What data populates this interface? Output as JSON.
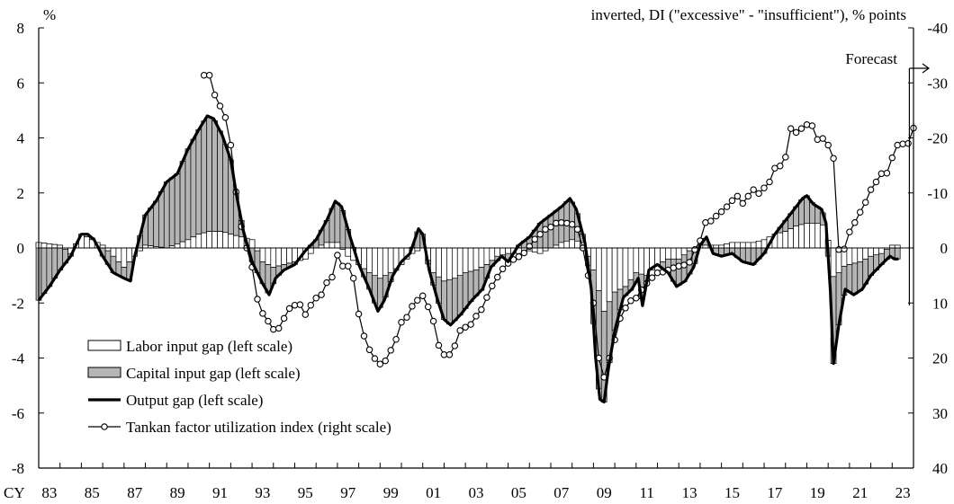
{
  "chart_data": {
    "type": "bar+line",
    "left_axis_label": "%",
    "right_axis_label": "inverted, DI (\"excessive\" - \"insufficient\"), % points",
    "left_ylim": [
      -8,
      8
    ],
    "left_ticks": [
      8,
      6,
      4,
      2,
      0,
      -2,
      -4,
      -6,
      -8
    ],
    "right_ylim_inverted": [
      40,
      -40
    ],
    "right_ticks": [
      -40,
      -30,
      -20,
      -10,
      0,
      10,
      20,
      30,
      40
    ],
    "x_axis_prefix": "CY",
    "x_tick_labels": [
      "83",
      "85",
      "87",
      "89",
      "91",
      "93",
      "95",
      "97",
      "99",
      "01",
      "03",
      "05",
      "07",
      "09",
      "11",
      "13",
      "15",
      "17",
      "19",
      "21",
      "23"
    ],
    "x_tick_years": [
      1983,
      1985,
      1987,
      1989,
      1991,
      1993,
      1995,
      1997,
      1999,
      2001,
      2003,
      2005,
      2007,
      2009,
      2011,
      2013,
      2015,
      2017,
      2019,
      2021,
      2023
    ],
    "forecast_label": "Forecast",
    "forecast_start": 2023.3,
    "output_gap": {
      "name": "Output gap (left scale)",
      "points": [
        [
          1983.0,
          -1.9
        ],
        [
          1983.5,
          -1.4
        ],
        [
          1984.0,
          -0.8
        ],
        [
          1984.5,
          -0.3
        ],
        [
          1984.8,
          0.2
        ],
        [
          1985.0,
          0.5
        ],
        [
          1985.3,
          0.5
        ],
        [
          1985.6,
          0.3
        ],
        [
          1986.0,
          -0.3
        ],
        [
          1986.5,
          -0.9
        ],
        [
          1987.0,
          -1.1
        ],
        [
          1987.3,
          -1.2
        ],
        [
          1987.5,
          -0.3
        ],
        [
          1987.8,
          0.6
        ],
        [
          1988.0,
          1.2
        ],
        [
          1988.5,
          1.7
        ],
        [
          1989.0,
          2.4
        ],
        [
          1989.5,
          2.7
        ],
        [
          1990.0,
          3.6
        ],
        [
          1990.5,
          4.3
        ],
        [
          1990.9,
          4.8
        ],
        [
          1991.2,
          4.7
        ],
        [
          1991.6,
          4.1
        ],
        [
          1992.0,
          3.2
        ],
        [
          1992.3,
          1.8
        ],
        [
          1992.6,
          0.6
        ],
        [
          1993.0,
          -0.5
        ],
        [
          1993.5,
          -1.3
        ],
        [
          1993.8,
          -1.7
        ],
        [
          1994.1,
          -1.1
        ],
        [
          1994.5,
          -0.8
        ],
        [
          1995.0,
          -0.6
        ],
        [
          1995.5,
          -0.1
        ],
        [
          1996.0,
          0.3
        ],
        [
          1996.5,
          1.0
        ],
        [
          1996.9,
          1.7
        ],
        [
          1997.2,
          1.5
        ],
        [
          1997.6,
          0.4
        ],
        [
          1998.0,
          -0.6
        ],
        [
          1998.5,
          -1.5
        ],
        [
          1998.9,
          -2.3
        ],
        [
          1999.2,
          -1.9
        ],
        [
          1999.6,
          -1.0
        ],
        [
          2000.0,
          -0.5
        ],
        [
          2000.4,
          -0.2
        ],
        [
          2000.8,
          0.7
        ],
        [
          2001.0,
          0.5
        ],
        [
          2001.3,
          -0.8
        ],
        [
          2001.7,
          -1.9
        ],
        [
          2002.0,
          -2.6
        ],
        [
          2002.3,
          -2.8
        ],
        [
          2002.8,
          -2.4
        ],
        [
          2003.3,
          -1.9
        ],
        [
          2003.8,
          -1.5
        ],
        [
          2004.2,
          -0.7
        ],
        [
          2004.7,
          -0.3
        ],
        [
          2005.0,
          -0.5
        ],
        [
          2005.5,
          0.1
        ],
        [
          2006.0,
          0.4
        ],
        [
          2006.5,
          0.9
        ],
        [
          2007.0,
          1.2
        ],
        [
          2007.5,
          1.5
        ],
        [
          2007.9,
          1.8
        ],
        [
          2008.2,
          1.4
        ],
        [
          2008.6,
          0.2
        ],
        [
          2008.9,
          -1.5
        ],
        [
          2009.1,
          -4.0
        ],
        [
          2009.3,
          -5.5
        ],
        [
          2009.5,
          -5.6
        ],
        [
          2009.7,
          -4.4
        ],
        [
          2010.0,
          -3.0
        ],
        [
          2010.4,
          -1.8
        ],
        [
          2010.8,
          -1.5
        ],
        [
          2011.1,
          -1.1
        ],
        [
          2011.3,
          -2.1
        ],
        [
          2011.6,
          -0.8
        ],
        [
          2012.0,
          -0.6
        ],
        [
          2012.5,
          -0.9
        ],
        [
          2012.9,
          -1.4
        ],
        [
          2013.3,
          -1.2
        ],
        [
          2013.7,
          -0.7
        ],
        [
          2014.0,
          0.1
        ],
        [
          2014.3,
          0.4
        ],
        [
          2014.6,
          -0.2
        ],
        [
          2015.0,
          -0.3
        ],
        [
          2015.5,
          -0.2
        ],
        [
          2016.0,
          -0.5
        ],
        [
          2016.5,
          -0.6
        ],
        [
          2017.0,
          -0.2
        ],
        [
          2017.5,
          0.5
        ],
        [
          2017.9,
          0.9
        ],
        [
          2018.3,
          1.3
        ],
        [
          2018.8,
          1.8
        ],
        [
          2019.0,
          1.9
        ],
        [
          2019.3,
          1.6
        ],
        [
          2019.7,
          1.4
        ],
        [
          2019.9,
          0.9
        ],
        [
          2020.1,
          -1.5
        ],
        [
          2020.25,
          -4.2
        ],
        [
          2020.5,
          -2.8
        ],
        [
          2020.8,
          -1.5
        ],
        [
          2021.2,
          -1.7
        ],
        [
          2021.6,
          -1.5
        ],
        [
          2022.0,
          -1.0
        ],
        [
          2022.5,
          -0.6
        ],
        [
          2022.9,
          -0.3
        ],
        [
          2023.1,
          -0.4
        ],
        [
          2023.3,
          -0.4
        ]
      ]
    },
    "labor_input_gap": {
      "name": "Labor input gap (left scale)",
      "points": [
        [
          1983.0,
          0.2
        ],
        [
          1984.0,
          0.1
        ],
        [
          1984.5,
          -0.2
        ],
        [
          1985.0,
          0.5
        ],
        [
          1985.5,
          0.3
        ],
        [
          1986.0,
          0.1
        ],
        [
          1986.5,
          -0.3
        ],
        [
          1987.0,
          -0.7
        ],
        [
          1987.5,
          -0.3
        ],
        [
          1988.0,
          0.1
        ],
        [
          1989.0,
          0.0
        ],
        [
          1990.0,
          0.3
        ],
        [
          1990.5,
          0.5
        ],
        [
          1991.0,
          0.6
        ],
        [
          1991.6,
          0.6
        ],
        [
          1992.0,
          0.5
        ],
        [
          1992.5,
          0.4
        ],
        [
          1993.0,
          0.3
        ],
        [
          1993.5,
          -0.5
        ],
        [
          1994.0,
          -0.7
        ],
        [
          1994.5,
          -0.6
        ],
        [
          1995.0,
          -0.5
        ],
        [
          1995.5,
          -0.4
        ],
        [
          1996.0,
          0.0
        ],
        [
          1996.5,
          0.2
        ],
        [
          1997.0,
          0.2
        ],
        [
          1997.5,
          -0.3
        ],
        [
          1998.0,
          -0.6
        ],
        [
          1998.5,
          -0.9
        ],
        [
          1999.0,
          -1.1
        ],
        [
          1999.5,
          -0.9
        ],
        [
          2000.0,
          -0.6
        ],
        [
          2000.5,
          -0.2
        ],
        [
          2001.0,
          0.0
        ],
        [
          2001.5,
          -0.9
        ],
        [
          2002.0,
          -1.2
        ],
        [
          2002.5,
          -1.1
        ],
        [
          2003.0,
          -0.9
        ],
        [
          2003.5,
          -0.8
        ],
        [
          2004.0,
          -0.6
        ],
        [
          2004.5,
          -0.3
        ],
        [
          2005.0,
          -0.2
        ],
        [
          2005.5,
          -0.2
        ],
        [
          2006.0,
          -0.1
        ],
        [
          2006.5,
          -0.2
        ],
        [
          2007.0,
          0.0
        ],
        [
          2007.5,
          0.2
        ],
        [
          2008.0,
          0.3
        ],
        [
          2008.5,
          0.2
        ],
        [
          2009.0,
          -0.8
        ],
        [
          2009.5,
          -2.3
        ],
        [
          2010.0,
          -1.6
        ],
        [
          2010.5,
          -1.4
        ],
        [
          2011.0,
          -0.9
        ],
        [
          2011.5,
          -1.0
        ],
        [
          2012.0,
          -0.6
        ],
        [
          2012.5,
          -0.4
        ],
        [
          2013.0,
          -0.4
        ],
        [
          2013.5,
          -0.1
        ],
        [
          2014.0,
          0.1
        ],
        [
          2014.5,
          0.1
        ],
        [
          2015.0,
          0.1
        ],
        [
          2015.5,
          0.2
        ],
        [
          2016.0,
          0.2
        ],
        [
          2016.5,
          0.2
        ],
        [
          2017.0,
          0.3
        ],
        [
          2017.5,
          0.5
        ],
        [
          2018.0,
          0.6
        ],
        [
          2018.5,
          0.8
        ],
        [
          2019.0,
          0.9
        ],
        [
          2019.5,
          0.9
        ],
        [
          2019.9,
          0.8
        ],
        [
          2020.3,
          -1.3
        ],
        [
          2020.6,
          -0.7
        ],
        [
          2021.0,
          -0.6
        ],
        [
          2021.5,
          -0.5
        ],
        [
          2022.0,
          -0.3
        ],
        [
          2022.5,
          -0.2
        ],
        [
          2023.0,
          0.1
        ],
        [
          2023.3,
          0.1
        ]
      ]
    },
    "capital_input_gap": {
      "name": "Capital input gap (left scale)",
      "description": "shaded area between the labor input gap and the output gap"
    },
    "tankan": {
      "name": "Tankan factor utilization index (right scale)",
      "points": [
        [
          1990.75,
          -31.4
        ],
        [
          1991.0,
          -31.4
        ],
        [
          1991.25,
          -27.8
        ],
        [
          1991.5,
          -25.8
        ],
        [
          1991.75,
          -23.7
        ],
        [
          1992.0,
          -18.7
        ],
        [
          1992.25,
          -10.2
        ],
        [
          1992.5,
          -3.9
        ],
        [
          1992.75,
          0.0
        ],
        [
          1993.0,
          3.5
        ],
        [
          1993.25,
          9.3
        ],
        [
          1993.5,
          11.9
        ],
        [
          1993.75,
          13.3
        ],
        [
          1994.0,
          14.8
        ],
        [
          1994.25,
          14.6
        ],
        [
          1994.5,
          12.8
        ],
        [
          1994.75,
          11.0
        ],
        [
          1995.0,
          10.4
        ],
        [
          1995.25,
          10.3
        ],
        [
          1995.5,
          12.1
        ],
        [
          1995.75,
          10.4
        ],
        [
          1996.0,
          9.1
        ],
        [
          1996.25,
          8.5
        ],
        [
          1996.5,
          6.3
        ],
        [
          1996.75,
          5.3
        ],
        [
          1997.0,
          1.3
        ],
        [
          1997.25,
          3.3
        ],
        [
          1997.5,
          3.3
        ],
        [
          1997.75,
          5.5
        ],
        [
          1998.0,
          12.0
        ],
        [
          1998.25,
          16.0
        ],
        [
          1998.5,
          18.5
        ],
        [
          1998.75,
          20.1
        ],
        [
          1999.0,
          21.1
        ],
        [
          1999.25,
          20.5
        ],
        [
          1999.5,
          18.6
        ],
        [
          1999.75,
          16.6
        ],
        [
          2000.0,
          13.5
        ],
        [
          2000.25,
          12.6
        ],
        [
          2000.5,
          10.6
        ],
        [
          2000.75,
          9.5
        ],
        [
          2001.0,
          8.7
        ],
        [
          2001.25,
          10.7
        ],
        [
          2001.5,
          13.3
        ],
        [
          2001.75,
          17.7
        ],
        [
          2002.0,
          19.4
        ],
        [
          2002.25,
          19.4
        ],
        [
          2002.5,
          17.8
        ],
        [
          2002.75,
          15.0
        ],
        [
          2003.0,
          14.4
        ],
        [
          2003.25,
          13.9
        ],
        [
          2003.5,
          12.4
        ],
        [
          2003.75,
          11.2
        ],
        [
          2004.0,
          9.0
        ],
        [
          2004.25,
          6.9
        ],
        [
          2004.5,
          5.3
        ],
        [
          2004.75,
          3.8
        ],
        [
          2005.0,
          2.8
        ],
        [
          2005.25,
          2.1
        ],
        [
          2005.5,
          1.6
        ],
        [
          2005.75,
          0.9
        ],
        [
          2006.0,
          -0.3
        ],
        [
          2006.25,
          -1.6
        ],
        [
          2006.5,
          -2.5
        ],
        [
          2006.75,
          -3.4
        ],
        [
          2007.0,
          -3.8
        ],
        [
          2007.25,
          -4.5
        ],
        [
          2007.5,
          -4.6
        ],
        [
          2007.75,
          -4.5
        ],
        [
          2008.0,
          -4.3
        ],
        [
          2008.25,
          -3.4
        ],
        [
          2008.5,
          0.0
        ],
        [
          2008.75,
          5.0
        ],
        [
          2009.0,
          10.0
        ],
        [
          2009.25,
          20.0
        ],
        [
          2009.5,
          23.5
        ],
        [
          2009.75,
          20.0
        ],
        [
          2010.0,
          16.7
        ],
        [
          2010.25,
          12.8
        ],
        [
          2010.5,
          10.9
        ],
        [
          2010.75,
          9.6
        ],
        [
          2011.0,
          9.1
        ],
        [
          2011.25,
          7.6
        ],
        [
          2011.5,
          6.4
        ],
        [
          2011.75,
          5.4
        ],
        [
          2012.0,
          4.5
        ],
        [
          2012.25,
          4.4
        ],
        [
          2012.5,
          4.0
        ],
        [
          2012.75,
          3.6
        ],
        [
          2013.0,
          3.3
        ],
        [
          2013.25,
          3.1
        ],
        [
          2013.5,
          2.6
        ],
        [
          2013.75,
          0.3
        ],
        [
          2014.0,
          -1.3
        ],
        [
          2014.25,
          -4.6
        ],
        [
          2014.5,
          -4.9
        ],
        [
          2014.75,
          -5.8
        ],
        [
          2015.0,
          -6.6
        ],
        [
          2015.25,
          -7.5
        ],
        [
          2015.5,
          -8.6
        ],
        [
          2015.75,
          -9.4
        ],
        [
          2016.0,
          -8.1
        ],
        [
          2016.25,
          -9.4
        ],
        [
          2016.5,
          -10.6
        ],
        [
          2016.75,
          -9.9
        ],
        [
          2017.0,
          -10.9
        ],
        [
          2017.25,
          -12.0
        ],
        [
          2017.5,
          -14.5
        ],
        [
          2017.75,
          -14.9
        ],
        [
          2018.0,
          -16.5
        ],
        [
          2018.25,
          -21.7
        ],
        [
          2018.5,
          -21.0
        ],
        [
          2018.75,
          -21.7
        ],
        [
          2019.0,
          -22.4
        ],
        [
          2019.25,
          -22.2
        ],
        [
          2019.5,
          -19.7
        ],
        [
          2019.75,
          -19.9
        ],
        [
          2020.0,
          -18.7
        ],
        [
          2020.25,
          -16.3
        ],
        [
          2020.5,
          0.3
        ],
        [
          2020.75,
          0.2
        ],
        [
          2021.0,
          -2.9
        ],
        [
          2021.25,
          -4.6
        ],
        [
          2021.5,
          -6.5
        ],
        [
          2021.75,
          -8.3
        ],
        [
          2022.0,
          -10.6
        ],
        [
          2022.25,
          -12.0
        ],
        [
          2022.5,
          -13.5
        ],
        [
          2022.75,
          -13.6
        ],
        [
          2023.0,
          -16.4
        ],
        [
          2023.25,
          -18.7
        ],
        [
          2023.5,
          -18.9
        ],
        [
          2023.75,
          -19.0
        ],
        [
          2024.0,
          -21.8
        ]
      ]
    }
  }
}
